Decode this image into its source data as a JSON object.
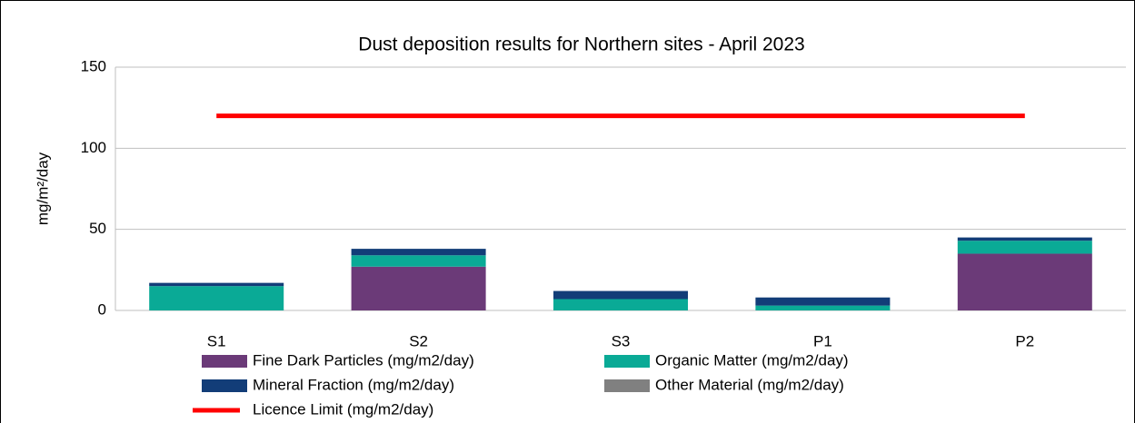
{
  "chart_data": {
    "type": "bar",
    "stacked": true,
    "title": "Dust deposition results for Northern sites - April 2023",
    "y_label": "mg/m²/day",
    "categories": [
      "S1",
      "S2",
      "S3",
      "P1",
      "P2"
    ],
    "series": [
      {
        "name": "Fine Dark Particles (mg/m2/day)",
        "color": "#6b3a78",
        "values": [
          0,
          27,
          0,
          0,
          35
        ]
      },
      {
        "name": "Organic Matter (mg/m2/day)",
        "color": "#0aaa96",
        "values": [
          15,
          7,
          7,
          3,
          8
        ]
      },
      {
        "name": "Mineral Fraction (mg/m2/day)",
        "color": "#123d78",
        "values": [
          2,
          4,
          5,
          5,
          2
        ]
      },
      {
        "name": "Other Material (mg/m2/day)",
        "color": "#808080",
        "values": [
          0,
          0,
          0,
          0,
          0
        ]
      },
      {
        "name": "Licence Limit  (mg/m2/day)",
        "color": "#ff0000",
        "type": "line",
        "values": [
          120,
          120,
          120,
          120,
          120
        ]
      }
    ],
    "ylim": [
      0,
      150
    ],
    "yticks": [
      0,
      50,
      100,
      150
    ],
    "grid": true
  }
}
